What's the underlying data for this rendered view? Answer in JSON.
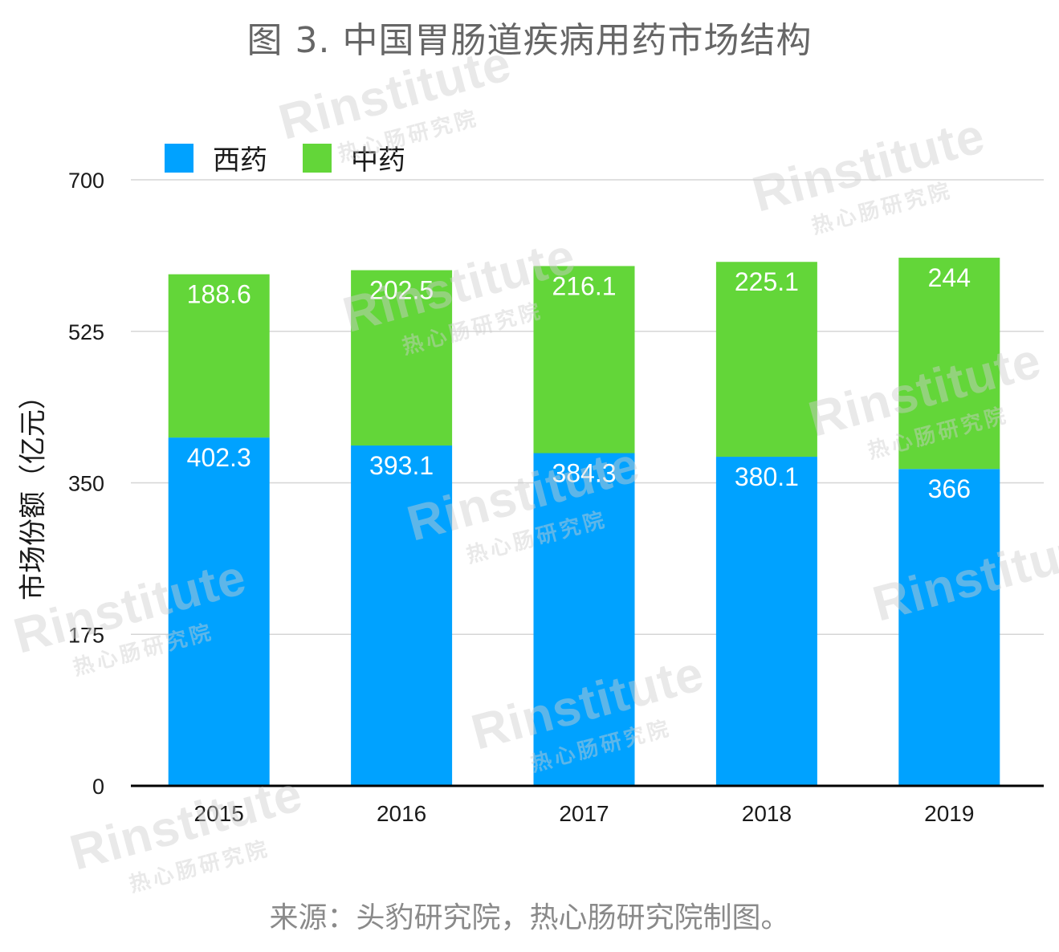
{
  "chart_data": {
    "type": "bar",
    "stacked": true,
    "title": "图 3. 中国胃肠道疾病用药市场结构",
    "ylabel": "市场份额（亿元）",
    "xlabel": "",
    "categories": [
      "2015",
      "2016",
      "2017",
      "2018",
      "2019"
    ],
    "series": [
      {
        "name": "西药",
        "color": "#00a2ff",
        "values": [
          402.3,
          393.1,
          384.3,
          380.1,
          366
        ],
        "labels": [
          "402.3",
          "393.1",
          "384.3",
          "380.1",
          "366"
        ]
      },
      {
        "name": "中药",
        "color": "#63d639",
        "values": [
          188.6,
          202.5,
          216.1,
          225.1,
          244
        ],
        "labels": [
          "188.6",
          "202.5",
          "216.1",
          "225.1",
          "244"
        ]
      }
    ],
    "ylim": [
      0,
      700
    ],
    "yticks": [
      "0",
      "175",
      "350",
      "525",
      "700"
    ],
    "grid": true,
    "legend_position": "top-left",
    "source": "来源：头豹研究院，热心肠研究院制图。"
  },
  "watermark": {
    "logo": "Rinstitute",
    "sub": "热心肠研究院"
  }
}
